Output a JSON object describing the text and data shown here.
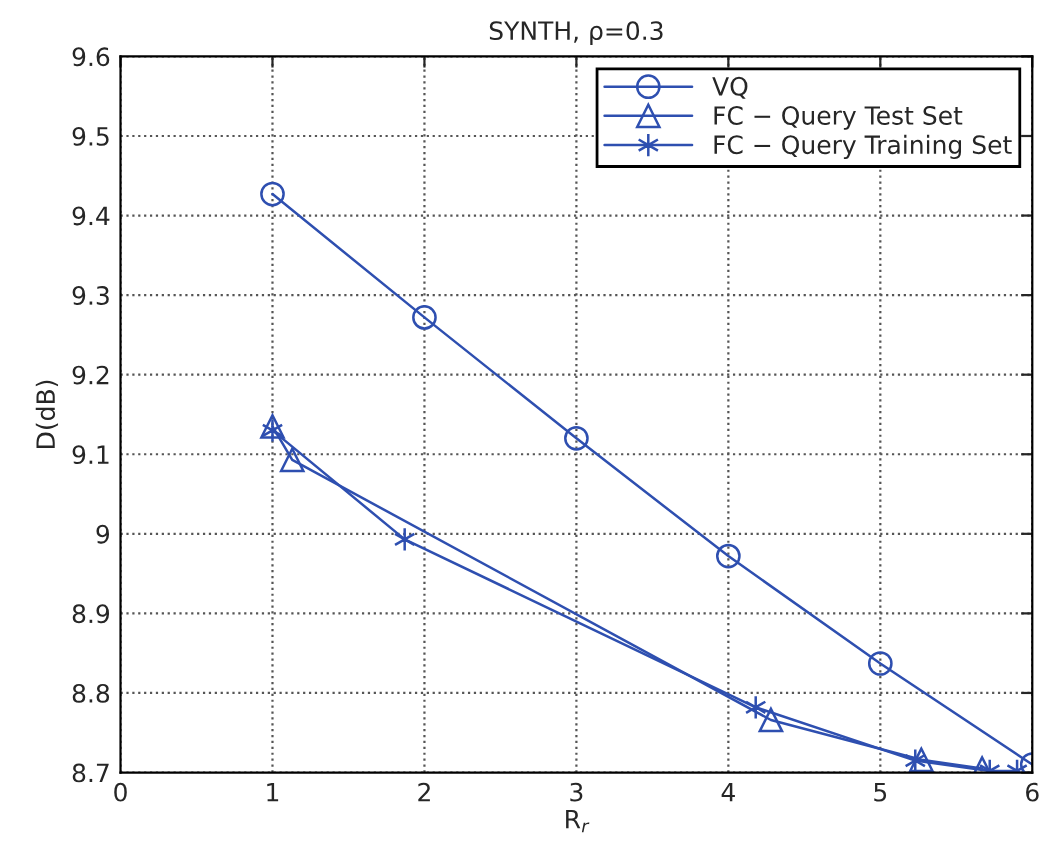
{
  "chart_data": {
    "type": "line",
    "title": "SYNTH, ρ=0.3",
    "xlabel": "R$_{r}$",
    "ylabel": "D(dB)",
    "xlim": [
      0,
      6
    ],
    "xticks": [
      0,
      1,
      2,
      3,
      4,
      5,
      6
    ],
    "ylim": [
      8.7,
      9.6
    ],
    "yticks": [
      8.7,
      8.8,
      8.9,
      9,
      9.1,
      9.2,
      9.3,
      9.4,
      9.5,
      9.6
    ],
    "grid": true,
    "legend": "top right",
    "series": [
      {
        "name": "VQ",
        "color": "#2e4fb0",
        "marker": "circle",
        "x": [
          1,
          2,
          3,
          4,
          5,
          6
        ],
        "values": [
          9.427,
          9.272,
          9.12,
          8.972,
          8.837,
          8.71
        ]
      },
      {
        "name": "FC − Query Test Set",
        "color": "#2e4fb0",
        "marker": "triangle",
        "x": [
          1,
          1.13,
          4.28,
          5.27,
          5.67
        ],
        "values": [
          9.135,
          9.093,
          8.766,
          8.716,
          8.705
        ]
      },
      {
        "name": "FC − Query Training Set",
        "color": "#2e4fb0",
        "marker": "cross",
        "x": [
          1,
          1.87,
          4.18,
          5.23,
          5.72,
          5.9
        ],
        "values": [
          9.13,
          8.993,
          8.782,
          8.715,
          8.702,
          8.702
        ]
      }
    ]
  }
}
